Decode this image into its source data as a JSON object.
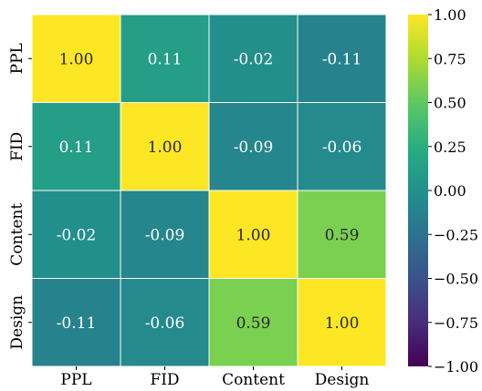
{
  "chart_data": {
    "type": "heatmap",
    "title": "",
    "xlabel": "",
    "ylabel": "",
    "x_categories": [
      "PPL",
      "FID",
      "Content",
      "Design"
    ],
    "y_categories": [
      "PPL",
      "FID",
      "Content",
      "Design"
    ],
    "values": [
      [
        1.0,
        0.11,
        -0.02,
        -0.11
      ],
      [
        0.11,
        1.0,
        -0.09,
        -0.06
      ],
      [
        -0.02,
        -0.09,
        1.0,
        0.59
      ],
      [
        -0.11,
        -0.06,
        0.59,
        1.0
      ]
    ],
    "value_labels": [
      [
        "1.00",
        "0.11",
        "-0.02",
        "-0.11"
      ],
      [
        "0.11",
        "1.00",
        "-0.09",
        "-0.06"
      ],
      [
        "-0.02",
        "-0.09",
        "1.00",
        "0.59"
      ],
      [
        "-0.11",
        "-0.06",
        "0.59",
        "1.00"
      ]
    ],
    "colormap": "viridis",
    "vmin": -1.0,
    "vmax": 1.0,
    "colorbar": {
      "placement": "right",
      "ticks": [
        1.0,
        0.75,
        0.5,
        0.25,
        0.0,
        -0.25,
        -0.5,
        -0.75,
        -1.0
      ],
      "tick_labels": [
        "1.00",
        "0.75",
        "0.50",
        "0.25",
        "0.00",
        "−0.25",
        "−0.50",
        "−0.75",
        "−1.00"
      ]
    },
    "grid": false,
    "cell_borders": true
  }
}
